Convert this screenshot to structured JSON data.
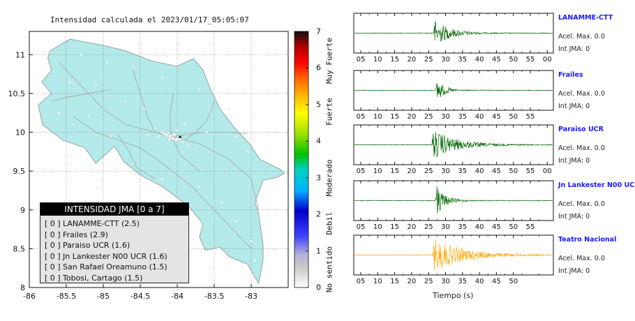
{
  "title": "Intensidad calculada el 2023/01/17_05:05:07",
  "chart_data": [
    {
      "type": "scatter",
      "title": "Intensidad calculada el 2023/01/17_05:05:07",
      "xlim": [
        -86,
        -82.5
      ],
      "ylim": [
        8,
        11.3
      ],
      "x_ticks": [
        "-86",
        "-85.5",
        "-85",
        "-84.5",
        "-84",
        "-83.5",
        "-83"
      ],
      "y_ticks": [
        "8",
        "8.5",
        "9",
        "9.5",
        "10",
        "10.5",
        "11"
      ],
      "grid": true,
      "colorbar": {
        "range": [
          0,
          7
        ],
        "ticks": [
          "0",
          "1",
          "2",
          "3",
          "4",
          "5",
          "6",
          "7"
        ],
        "labels": [
          "No sentido",
          "Debil",
          "Moderado",
          "Fuerte",
          "Muy Fuerte"
        ]
      },
      "legend": {
        "title": "INTENSIDAD JMA [0 a 7]",
        "placement": "bottom-left",
        "items": [
          {
            "box": "[ 0 ]",
            "label": "LANAMME-CTT (2.5)"
          },
          {
            "box": "[ 0 ]",
            "label": "Frailes (2.9)"
          },
          {
            "box": "[ 0 ]",
            "label": "Paraiso UCR (1.6)"
          },
          {
            "box": "[ 0 ]",
            "label": "Jn Lankester N00 UCR (1.6)"
          },
          {
            "box": "[ 0 ]",
            "label": "San Rafael Oreamuno (1.5)"
          },
          {
            "box": "[ 0 ]",
            "label": "Tobosi, Cartago (1.5)"
          }
        ]
      },
      "stations": [
        {
          "lon": -84.05,
          "lat": 9.93
        },
        {
          "lon": -84.08,
          "lat": 9.96
        },
        {
          "lon": -84.12,
          "lat": 9.99
        },
        {
          "lon": -84.2,
          "lat": 10.0
        },
        {
          "lon": -84.25,
          "lat": 9.95
        },
        {
          "lon": -84.3,
          "lat": 10.05
        },
        {
          "lon": -84.4,
          "lat": 9.97
        },
        {
          "lon": -84.0,
          "lat": 10.02
        },
        {
          "lon": -83.92,
          "lat": 9.87
        },
        {
          "lon": -83.85,
          "lat": 9.83
        },
        {
          "lon": -83.9,
          "lat": 10.1
        },
        {
          "lon": -84.45,
          "lat": 10.3
        },
        {
          "lon": -84.7,
          "lat": 10.4
        },
        {
          "lon": -85.1,
          "lat": 10.6
        },
        {
          "lon": -85.45,
          "lat": 10.65
        },
        {
          "lon": -85.6,
          "lat": 10.25
        },
        {
          "lon": -85.4,
          "lat": 10.1
        },
        {
          "lon": -85.2,
          "lat": 10.2
        },
        {
          "lon": -84.9,
          "lat": 9.95
        },
        {
          "lon": -84.6,
          "lat": 9.6
        },
        {
          "lon": -84.2,
          "lat": 9.4
        },
        {
          "lon": -83.7,
          "lat": 9.3
        },
        {
          "lon": -83.4,
          "lat": 9.1
        },
        {
          "lon": -83.2,
          "lat": 8.85
        },
        {
          "lon": -83.0,
          "lat": 8.6
        },
        {
          "lon": -83.6,
          "lat": 10.0
        },
        {
          "lon": -83.2,
          "lat": 9.95
        },
        {
          "lon": -83.05,
          "lat": 9.75
        },
        {
          "lon": -83.3,
          "lat": 10.3
        },
        {
          "lon": -84.6,
          "lat": 10.85
        },
        {
          "lon": -84.2,
          "lat": 10.7
        },
        {
          "lon": -83.7,
          "lat": 10.55
        },
        {
          "lon": -85.3,
          "lat": 11.0
        },
        {
          "lon": -84.95,
          "lat": 10.9
        },
        {
          "lon": -83.45,
          "lat": 8.5
        },
        {
          "lon": -82.95,
          "lat": 8.35
        }
      ]
    },
    {
      "type": "line",
      "xlabel": "Tiempo (s)",
      "x_axis": "elapsed seconds",
      "panels": [
        {
          "name": "LANAMME-CTT",
          "acel": "Acel. Max. 0.0",
          "jma": "Int JMA: 0",
          "color": "#006400",
          "x_ticks": [
            "05",
            "10",
            "15",
            "20",
            "25",
            "30",
            "35",
            "40",
            "45",
            "50",
            "55",
            "00"
          ],
          "tick_minute": 5,
          "arrival": 26.5,
          "peak": 0.75,
          "decay": 0.22
        },
        {
          "name": "Frailes",
          "acel": "Acel. Max. 0.0",
          "jma": "Int JMA: 0",
          "color": "#006400",
          "x_ticks": [
            "05",
            "10",
            "15",
            "20",
            "25",
            "30",
            "35",
            "40",
            "45",
            "50",
            "55"
          ],
          "tick_minute": 5,
          "arrival": 27.2,
          "peak": 0.7,
          "decay": 0.45
        },
        {
          "name": "Paraiso UCR",
          "acel": "Acel. Max. 0.0",
          "jma": "Int JMA: 0",
          "color": "#006400",
          "x_ticks": [
            "05",
            "10",
            "15",
            "20",
            "25",
            "30",
            "35",
            "40",
            "45",
            "50",
            "55",
            "00"
          ],
          "tick_minute": 5,
          "arrival": 26.0,
          "peak": 0.85,
          "decay": 0.15
        },
        {
          "name": "Jn Lankester N00 UCR",
          "acel": "Acel. Max. 0.0",
          "jma": "Int JMA: 0",
          "color": "#006400",
          "x_ticks": [
            "05",
            "10",
            "15",
            "20",
            "25",
            "30",
            "35",
            "40",
            "45",
            "50",
            "55"
          ],
          "tick_minute": 5,
          "arrival": 27.0,
          "peak": 0.95,
          "decay": 0.4
        },
        {
          "name": "Teatro Nacional",
          "acel": "Acel. Max. 0.0",
          "jma": "Int JMA: 0",
          "color": "#ffa500",
          "x_ticks": [
            "05",
            "10",
            "15",
            "20",
            "25",
            "30",
            "35",
            "40",
            "45",
            "50"
          ],
          "tick_minute": 5,
          "arrival": 26.2,
          "peak": 0.95,
          "decay": 0.12
        }
      ]
    }
  ]
}
